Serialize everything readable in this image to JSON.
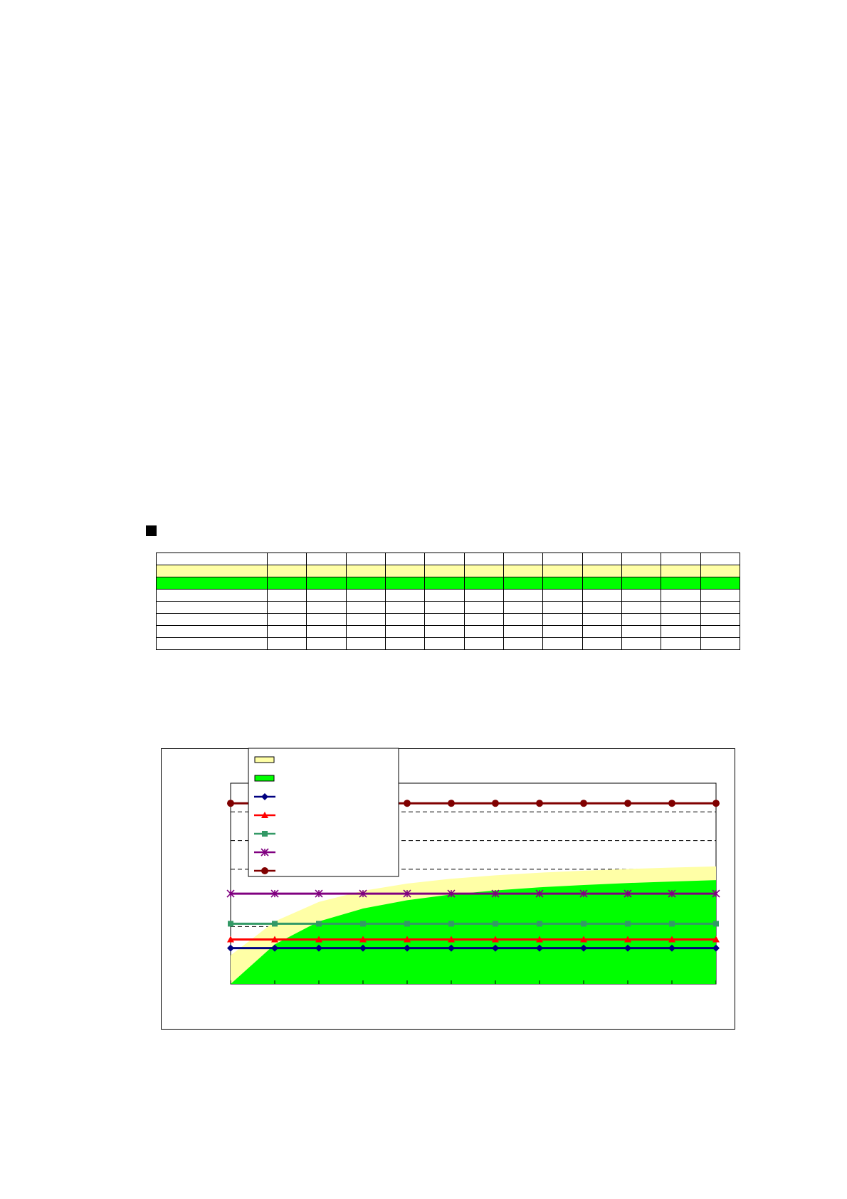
{
  "table": {
    "row_count": 8,
    "value_columns": 12,
    "row_fills": [
      "#ffffff",
      "#ffffa6",
      "#00ff00",
      "#ffffff",
      "#ffffff",
      "#ffffff",
      "#ffffff",
      "#ffffff"
    ]
  },
  "chart_data": {
    "type": "area",
    "x": [
      0,
      1,
      2,
      3,
      4,
      5,
      6,
      7,
      8,
      9,
      10,
      11
    ],
    "ylim": [
      0,
      7
    ],
    "grid": "dashed-horizontal",
    "legend_placement": "top-left",
    "legend_labels_visible": false,
    "areas": [
      {
        "color": "#ffffa6",
        "values": [
          1.0,
          2.18,
          2.86,
          3.25,
          3.5,
          3.67,
          3.79,
          3.88,
          3.95,
          4.01,
          4.06,
          4.1
        ]
      },
      {
        "color": "#00ff00",
        "values": [
          0.0,
          1.38,
          2.18,
          2.63,
          2.92,
          3.12,
          3.26,
          3.37,
          3.45,
          3.52,
          3.57,
          3.62
        ]
      }
    ],
    "series": [
      {
        "color": "#000080",
        "marker": "diamond",
        "values": [
          1.25,
          1.25,
          1.25,
          1.25,
          1.25,
          1.25,
          1.25,
          1.25,
          1.25,
          1.25,
          1.25,
          1.25
        ]
      },
      {
        "color": "#ff0000",
        "marker": "triangle",
        "values": [
          1.55,
          1.55,
          1.55,
          1.55,
          1.55,
          1.55,
          1.55,
          1.55,
          1.55,
          1.55,
          1.55,
          1.55
        ]
      },
      {
        "color": "#339966",
        "marker": "square",
        "values": [
          2.1,
          2.1,
          2.1,
          2.1,
          2.1,
          2.1,
          2.1,
          2.1,
          2.1,
          2.1,
          2.1,
          2.1
        ]
      },
      {
        "color": "#800080",
        "marker": "star",
        "values": [
          3.15,
          3.15,
          3.15,
          3.15,
          3.15,
          3.15,
          3.15,
          3.15,
          3.15,
          3.15,
          3.15,
          3.15
        ]
      },
      {
        "color": "#800000",
        "marker": "circle",
        "values": [
          6.3,
          6.3,
          6.3,
          6.3,
          6.3,
          6.3,
          6.3,
          6.3,
          6.3,
          6.3,
          6.3,
          6.3
        ]
      }
    ],
    "gridlines": [
      2.0,
      4.0,
      5.0,
      6.0
    ]
  }
}
